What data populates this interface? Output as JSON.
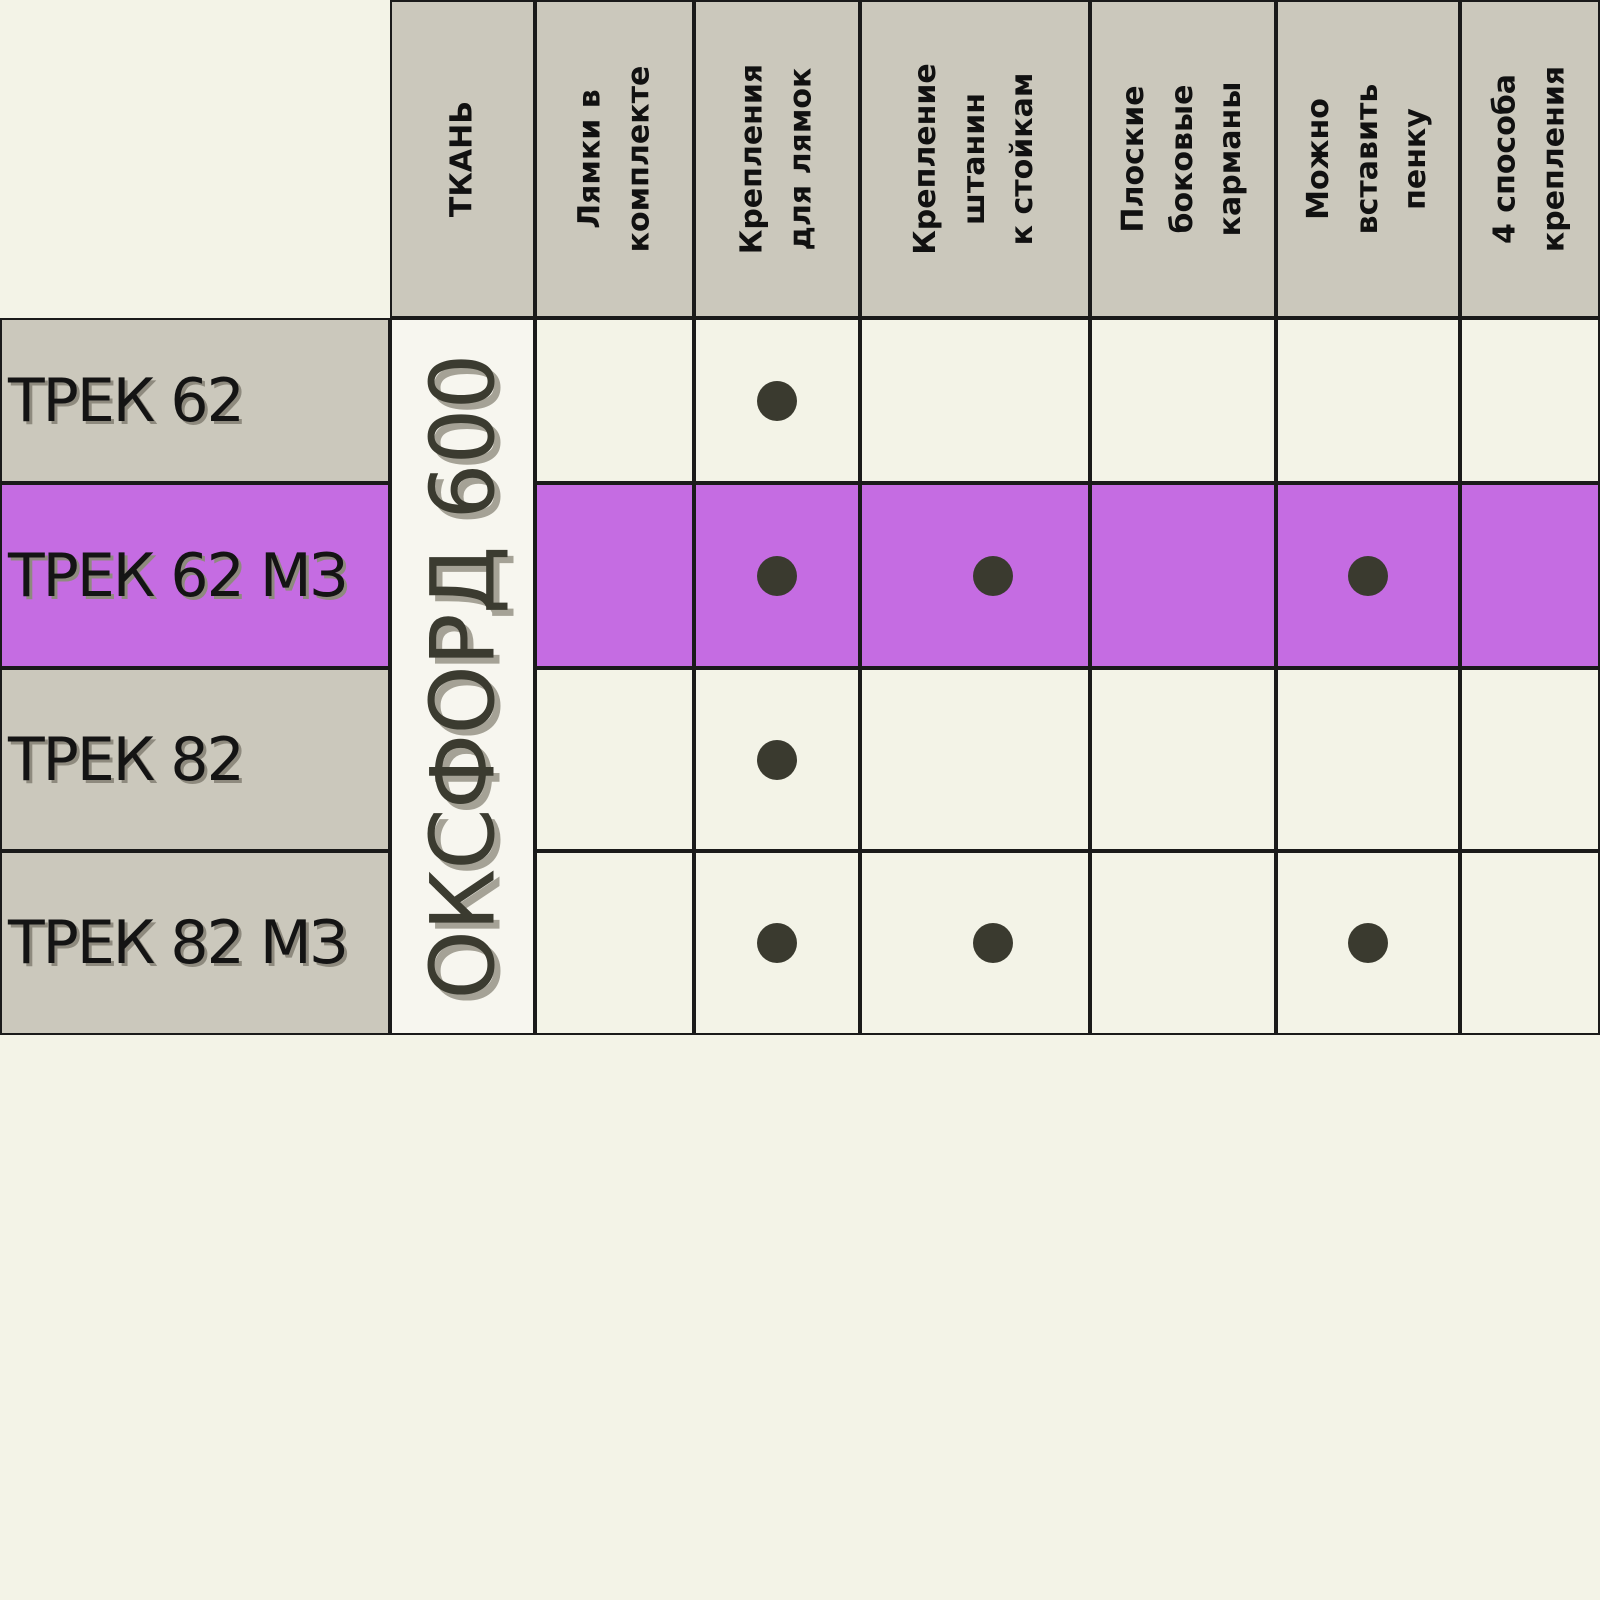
{
  "header": {
    "fabric": "ТКАНЬ",
    "features": [
      "Лямки в\nкомплекте",
      "Крепления\nдля лямок",
      "Крепление\nштанин\nк стойкам",
      "Плоские\nбоковые\nкарманы",
      "Можно\nвставить\nпенку",
      "4 способа\nкрепления"
    ]
  },
  "fabric_value": "ОКСФОРД 600",
  "rows": [
    {
      "label": "ТРЕК 62",
      "highlight": false,
      "checks": [
        false,
        true,
        false,
        false,
        false,
        false
      ]
    },
    {
      "label": "ТРЕК 62 МЗ",
      "highlight": true,
      "checks": [
        false,
        true,
        true,
        false,
        true,
        false
      ]
    },
    {
      "label": "ТРЕК 82",
      "highlight": false,
      "checks": [
        false,
        true,
        false,
        false,
        false,
        false
      ]
    },
    {
      "label": "ТРЕК 82 МЗ",
      "highlight": false,
      "checks": [
        false,
        true,
        true,
        false,
        true,
        false
      ]
    }
  ],
  "colors": {
    "background": "#f3f3e7",
    "header_bg": "#cbc8bc",
    "highlight": "#c56ce2",
    "dot": "#3a3a2f",
    "border": "#1a1a1a"
  }
}
